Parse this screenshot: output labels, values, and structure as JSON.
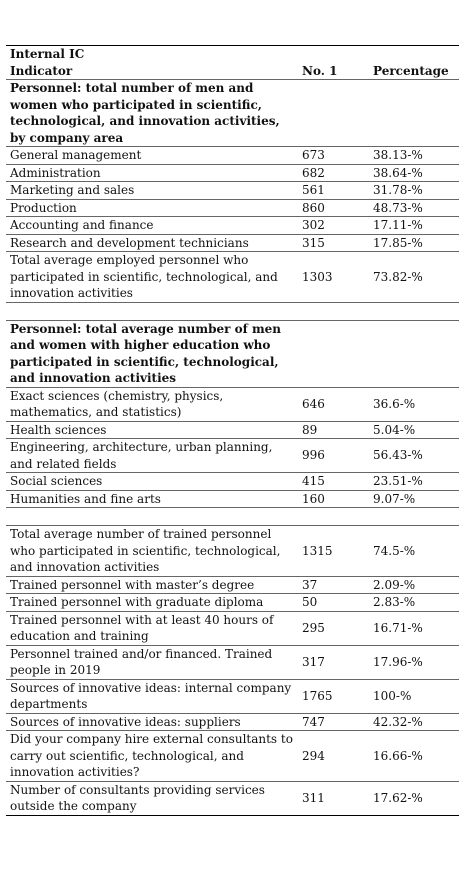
{
  "table": {
    "title": "Internal IC",
    "columns": [
      "Indicator",
      "No. 1",
      "Percentage"
    ],
    "sections": [
      {
        "heading": "Personnel: total number of men and women who participated in scientific, technological, and innovation activities, by company area",
        "rows": [
          [
            "General management",
            673,
            "38.13-%"
          ],
          [
            "Administration",
            682,
            "38.64-%"
          ],
          [
            "Marketing and sales",
            561,
            "31.78-%"
          ],
          [
            "Production",
            860,
            "48.73-%"
          ],
          [
            "Accounting and finance",
            302,
            "17.11-%"
          ],
          [
            "Research and development technicians",
            315,
            "17.85-%"
          ],
          [
            "Total average employed personnel who participated in scientific, technological, and innovation activities",
            1303,
            "73.82-%"
          ]
        ]
      },
      {
        "heading": "Personnel: total average number of men and women with higher education who participated in scientific, technological, and innovation activities",
        "rows": [
          [
            "Exact sciences (chemistry, physics, mathematics, and statistics)",
            646,
            "36.6-%"
          ],
          [
            "Health sciences",
            89,
            "5.04-%"
          ],
          [
            "Engineering, architecture, urban planning, and related fields",
            996,
            "56.43-%"
          ],
          [
            "Social sciences",
            415,
            "23.51-%"
          ],
          [
            "Humanities and fine arts",
            160,
            "9.07-%"
          ]
        ]
      },
      {
        "rows": [
          [
            "Total average number of trained personnel who participated in scientific, technological, and innovation activities",
            1315,
            "74.5-%"
          ],
          [
            "Trained personnel with master’s degree",
            37,
            "2.09-%"
          ],
          [
            "Trained personnel with graduate diploma",
            50,
            "2.83-%"
          ],
          [
            "Trained personnel with at least 40 hours of education and training",
            295,
            "16.71-%"
          ],
          [
            "Personnel trained and/or financed. Trained people in 2019",
            317,
            "17.96-%"
          ],
          [
            "Sources of innovative ideas: internal company departments",
            1765,
            "100-%"
          ],
          [
            "Sources of innovative ideas: suppliers",
            747,
            "42.32-%"
          ],
          [
            "Did your company hire external consultants to carry out scientific, technological, and innovation activities?",
            294,
            "16.66-%"
          ],
          [
            "Number of consultants providing services outside the company",
            311,
            "17.62-%"
          ]
        ]
      }
    ]
  }
}
